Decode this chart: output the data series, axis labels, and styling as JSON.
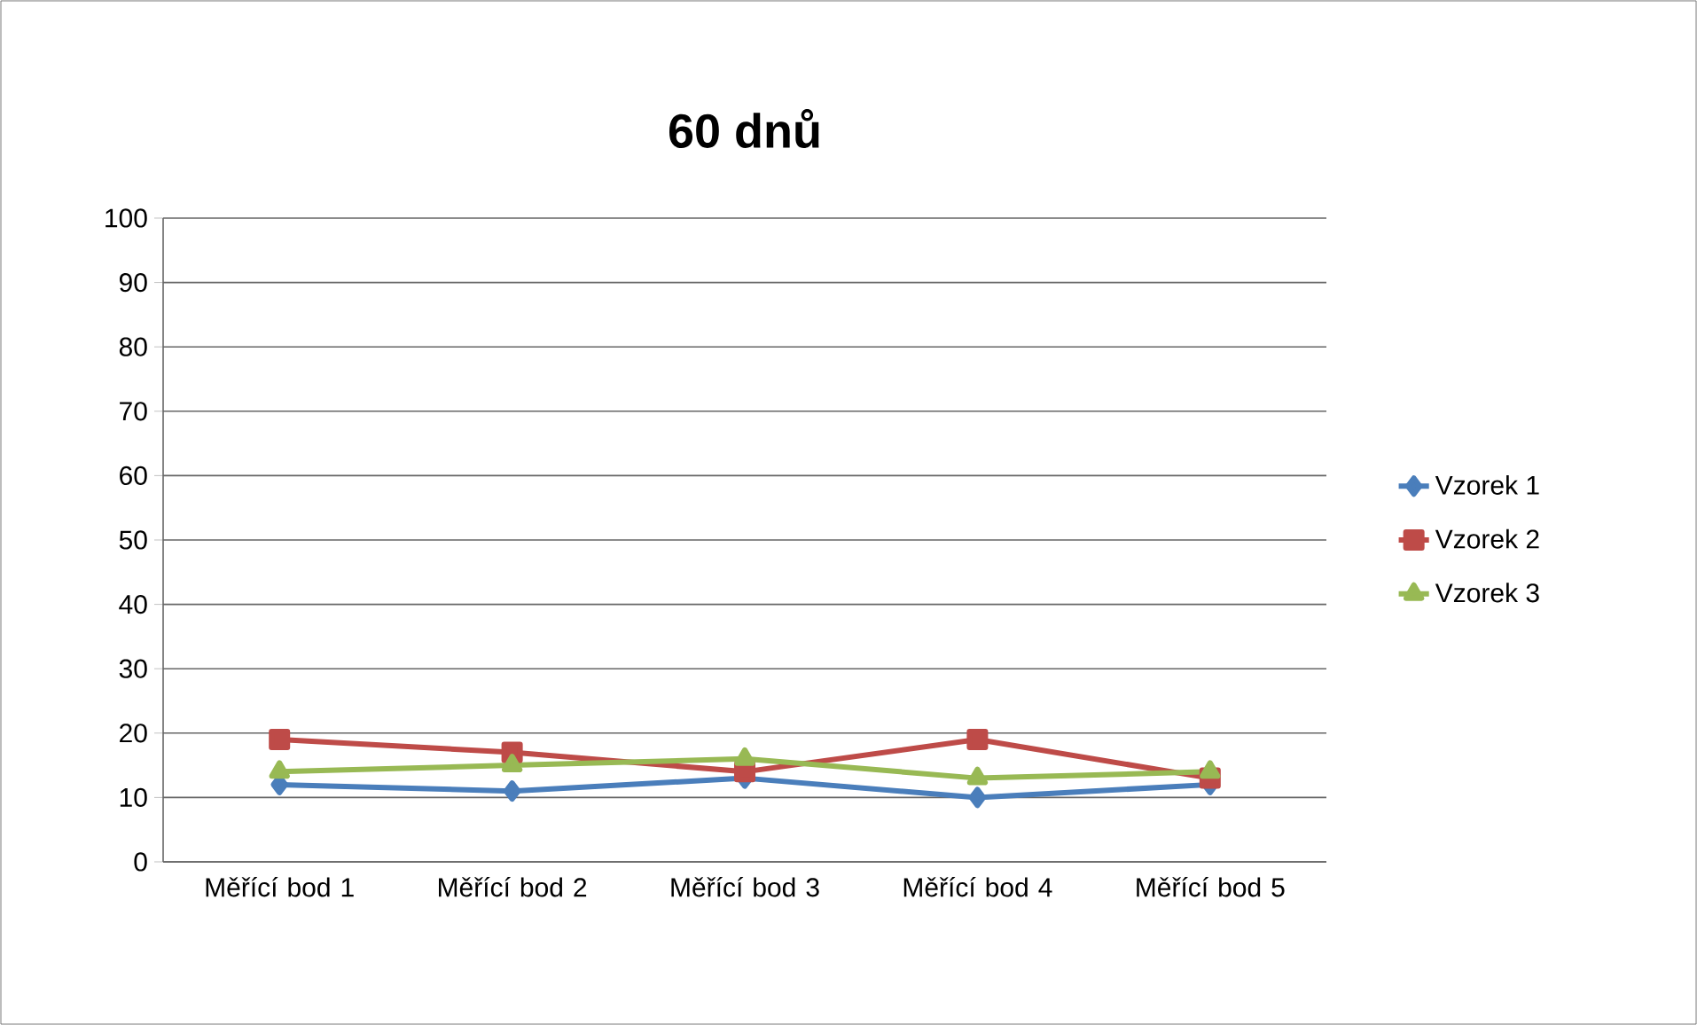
{
  "chart_data": {
    "type": "line",
    "title": "60 dnů",
    "categories": [
      "Měřící bod 1",
      "Měřící bod 2",
      "Měřící bod 3",
      "Měřící bod 4",
      "Měřící bod 5"
    ],
    "series": [
      {
        "name": "Vzorek 1",
        "color": "#4a7ebb",
        "marker": "diamond",
        "values": [
          12,
          11,
          13,
          10,
          12
        ]
      },
      {
        "name": "Vzorek 2",
        "color": "#be4b48",
        "marker": "square",
        "values": [
          19,
          17,
          14,
          19,
          13
        ]
      },
      {
        "name": "Vzorek 3",
        "color": "#98b954",
        "marker": "triangle",
        "values": [
          14,
          15,
          16,
          13,
          14
        ]
      }
    ],
    "ylim": [
      0,
      100
    ],
    "yticks": [
      0,
      10,
      20,
      30,
      40,
      50,
      60,
      70,
      80,
      90,
      100
    ],
    "grid": "y",
    "legend": "right"
  }
}
